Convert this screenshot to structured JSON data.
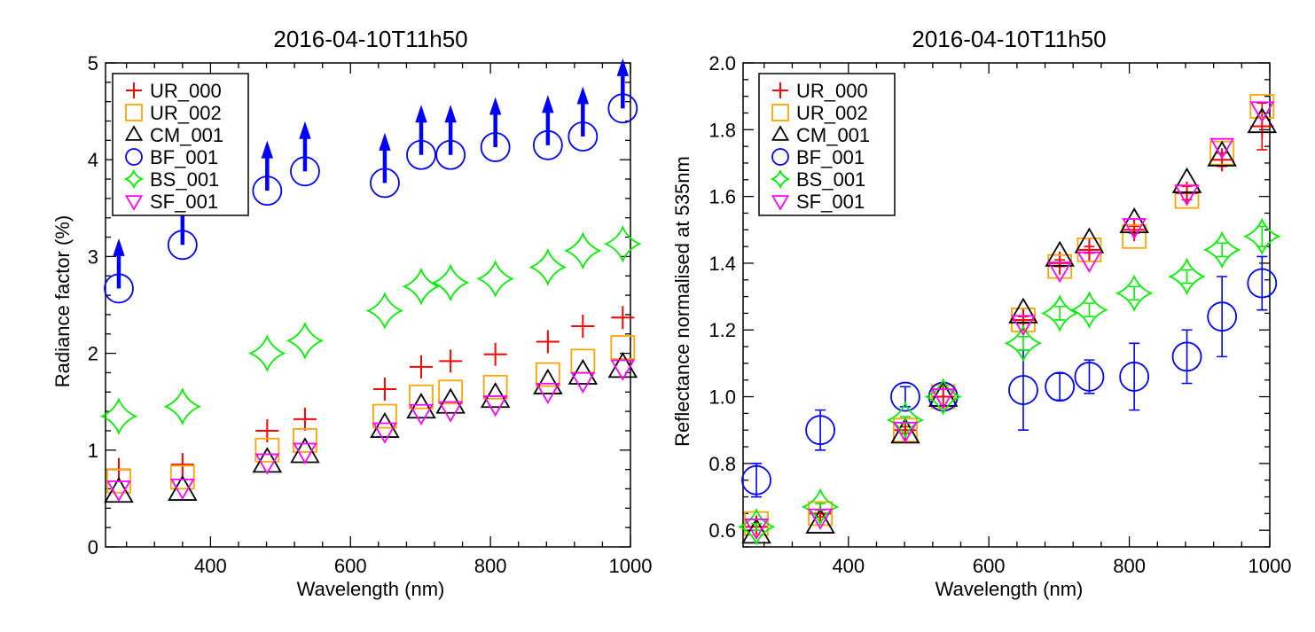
{
  "chart_data": [
    {
      "type": "scatter",
      "title": "2016-04-10T11h50",
      "xlabel": "Wavelength (nm)",
      "ylabel": "Radiance factor (%)",
      "xlim": [
        250,
        1000
      ],
      "ylim": [
        0,
        5
      ],
      "xticks": [
        400,
        600,
        800,
        1000
      ],
      "xtick_labels": [
        "400",
        "600",
        "800",
        "1000"
      ],
      "yticks": [
        0,
        1,
        2,
        3,
        4,
        5
      ],
      "ytick_labels": [
        "0",
        "1",
        "2",
        "3",
        "4",
        "5"
      ],
      "legend_position": "top-left",
      "x": [
        269,
        360,
        481,
        535,
        649,
        701,
        743,
        807,
        882,
        932,
        989
      ],
      "series": [
        {
          "name": "UR_000",
          "marker": "plus",
          "color": "#ff0000",
          "values": [
            0.8,
            0.85,
            1.2,
            1.32,
            1.63,
            1.86,
            1.92,
            1.99,
            2.12,
            2.28,
            2.37
          ]
        },
        {
          "name": "UR_002",
          "marker": "square",
          "color": "#ffa500",
          "values": [
            0.68,
            0.72,
            1.0,
            1.1,
            1.35,
            1.55,
            1.6,
            1.65,
            1.78,
            1.92,
            2.06
          ]
        },
        {
          "name": "CM_001",
          "marker": "triangle-up",
          "color": "#000000",
          "values": [
            0.56,
            0.58,
            0.87,
            0.97,
            1.23,
            1.43,
            1.48,
            1.54,
            1.68,
            1.78,
            1.85
          ]
        },
        {
          "name": "BF_001",
          "marker": "circle",
          "color": "#0000ff",
          "values": [
            2.67,
            3.12,
            3.68,
            3.88,
            3.76,
            4.05,
            4.05,
            4.13,
            4.15,
            4.24,
            4.53
          ],
          "upper_limit_arrows": true
        },
        {
          "name": "BS_001",
          "marker": "star",
          "color": "#00ee00",
          "values": [
            1.35,
            1.45,
            2.0,
            2.13,
            2.44,
            2.69,
            2.73,
            2.77,
            2.89,
            3.06,
            3.13
          ]
        },
        {
          "name": "SF_001",
          "marker": "triangle-down",
          "color": "#ff00ff",
          "values": [
            0.6,
            0.62,
            0.88,
            0.99,
            1.2,
            1.39,
            1.42,
            1.48,
            1.61,
            1.72,
            1.85
          ]
        }
      ]
    },
    {
      "type": "scatter",
      "title": "2016-04-10T11h50",
      "xlabel": "Wavelength (nm)",
      "ylabel": "Reflectance normalised at 535nm",
      "xlim": [
        250,
        1000
      ],
      "ylim": [
        0.55,
        2.0
      ],
      "xticks": [
        400,
        600,
        800,
        1000
      ],
      "xtick_labels": [
        "400",
        "600",
        "800",
        "1000"
      ],
      "yticks": [
        0.6,
        0.8,
        1.0,
        1.2,
        1.4,
        1.6,
        1.8,
        2.0
      ],
      "ytick_labels": [
        "0.6",
        "0.8",
        "1.0",
        "1.2",
        "1.4",
        "1.6",
        "1.8",
        "2.0"
      ],
      "legend_position": "top-left",
      "x": [
        269,
        360,
        481,
        535,
        649,
        701,
        743,
        807,
        882,
        932,
        989
      ],
      "series": [
        {
          "name": "UR_000",
          "marker": "plus",
          "color": "#ff0000",
          "values": [
            0.61,
            0.65,
            0.9,
            1.0,
            1.23,
            1.4,
            1.44,
            1.5,
            1.61,
            1.71,
            1.81
          ],
          "errors": [
            0.01,
            0.01,
            0.01,
            0,
            0.01,
            0.01,
            0.01,
            0.01,
            0.02,
            0.02,
            0.07
          ]
        },
        {
          "name": "UR_002",
          "marker": "square",
          "color": "#ffa500",
          "values": [
            0.62,
            0.65,
            0.9,
            1.0,
            1.23,
            1.39,
            1.44,
            1.48,
            1.6,
            1.73,
            1.87
          ],
          "errors": [
            0,
            0,
            0,
            0,
            0,
            0,
            0,
            0,
            0,
            0,
            0
          ]
        },
        {
          "name": "CM_001",
          "marker": "triangle-up",
          "color": "#000000",
          "values": [
            0.59,
            0.62,
            0.89,
            1.0,
            1.25,
            1.42,
            1.46,
            1.52,
            1.64,
            1.72,
            1.82
          ],
          "errors": [
            0,
            0,
            0,
            0,
            0,
            0,
            0,
            0,
            0,
            0,
            0
          ]
        },
        {
          "name": "BF_001",
          "marker": "circle",
          "color": "#0000ff",
          "values": [
            0.75,
            0.9,
            1.0,
            1.0,
            1.02,
            1.03,
            1.06,
            1.06,
            1.12,
            1.24,
            1.34
          ],
          "errors": [
            0.05,
            0.06,
            0.03,
            0,
            0.12,
            0.04,
            0.05,
            0.1,
            0.08,
            0.12,
            0.08
          ]
        },
        {
          "name": "BS_001",
          "marker": "star",
          "color": "#00ee00",
          "values": [
            0.61,
            0.67,
            0.93,
            1.0,
            1.16,
            1.25,
            1.26,
            1.31,
            1.36,
            1.44,
            1.48
          ],
          "errors": [
            0.01,
            0.01,
            0.01,
            0,
            0.02,
            0.02,
            0.02,
            0.02,
            0.02,
            0.02,
            0.03
          ]
        },
        {
          "name": "SF_001",
          "marker": "triangle-down",
          "color": "#ff00ff",
          "values": [
            0.61,
            0.64,
            0.9,
            1.0,
            1.22,
            1.38,
            1.41,
            1.51,
            1.61,
            1.75,
            1.86
          ],
          "errors": [
            0,
            0,
            0,
            0,
            0,
            0,
            0,
            0,
            0,
            0,
            0
          ]
        }
      ]
    }
  ]
}
